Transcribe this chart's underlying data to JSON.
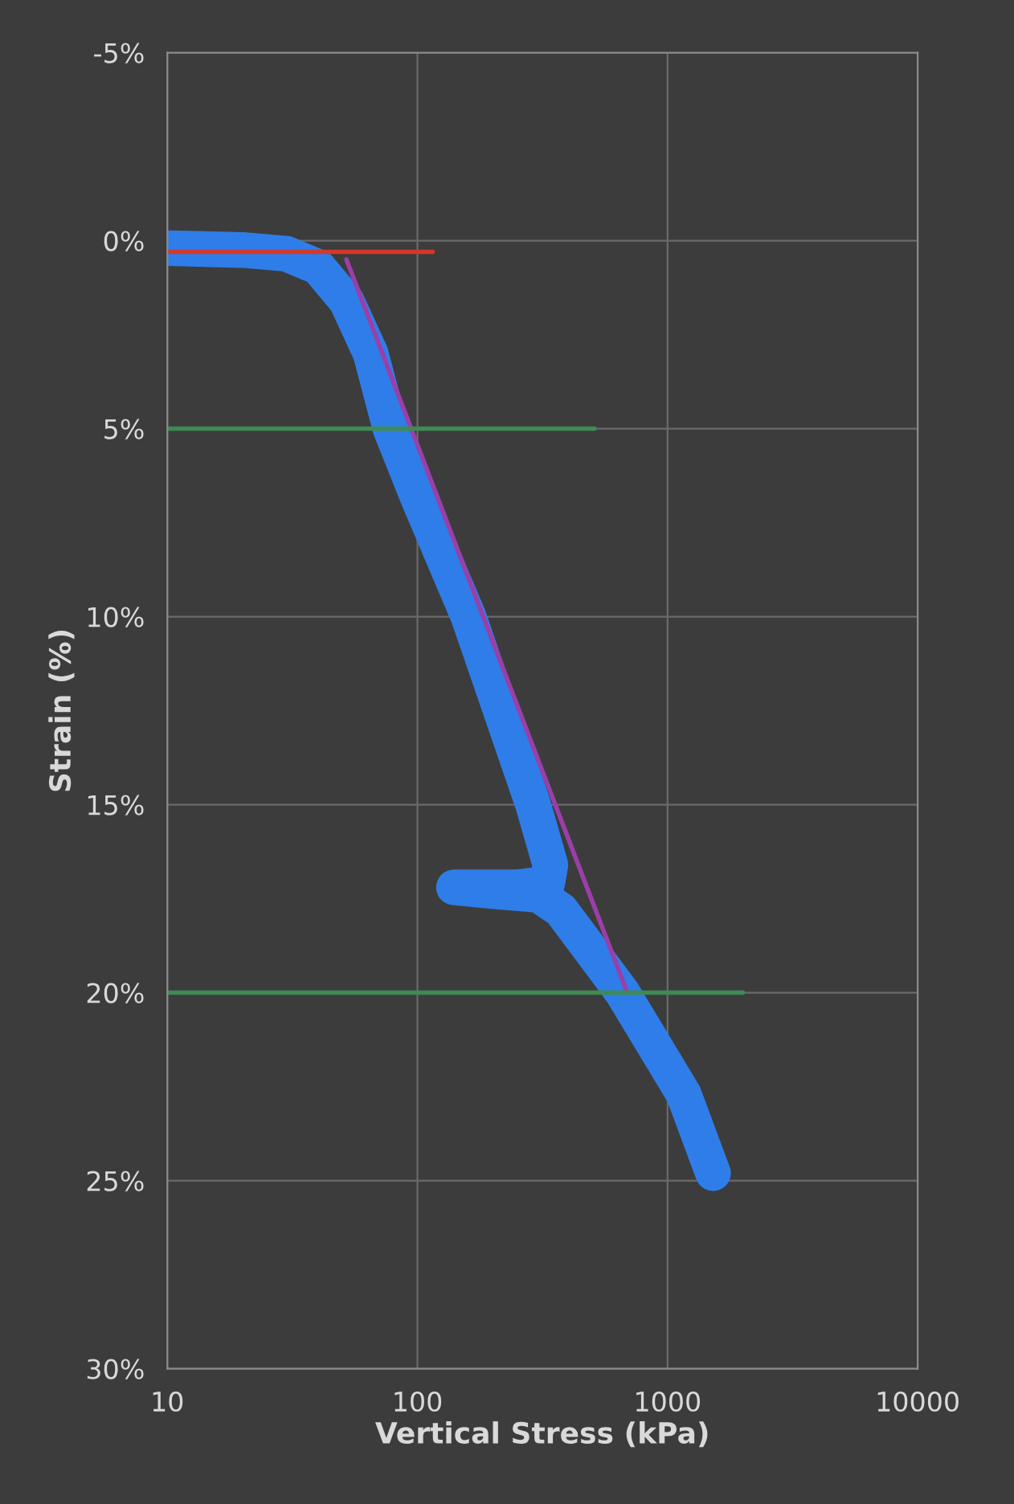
{
  "chart_data": {
    "type": "line",
    "xlabel": "Vertical Stress (kPa)",
    "ylabel": "Strain (%)",
    "log": "x",
    "xlim": [
      10,
      10000
    ],
    "xticks": [
      10,
      100,
      1000,
      10000
    ],
    "ylim": [
      30,
      -5
    ],
    "yticks": [
      {
        "value": -5,
        "label": "-5%"
      },
      {
        "value": 0,
        "label": "0%"
      },
      {
        "value": 5,
        "label": "5%"
      },
      {
        "value": 10,
        "label": "10%"
      },
      {
        "value": 15,
        "label": "15%"
      },
      {
        "value": 20,
        "label": "20%"
      },
      {
        "value": 25,
        "label": "25%"
      },
      {
        "value": 30,
        "label": "30%"
      }
    ],
    "grid": true,
    "marker": "none",
    "line_style": "solid",
    "series": [
      {
        "color": "#2f7de8",
        "x": [
          10,
          20,
          30,
          40,
          52,
          65,
          78,
          100,
          160,
          290,
          340,
          330,
          250,
          140,
          200,
          305,
          374,
          660,
          1160,
          1520
        ],
        "values": [
          0.2,
          0.25,
          0.35,
          0.7,
          1.6,
          3,
          5,
          6.8,
          10,
          15,
          16.6,
          17.1,
          17.2,
          17.2,
          17.3,
          17.4,
          17.8,
          20,
          22.7,
          24.8
        ]
      },
      {
        "color": "#d03a2c",
        "x": [
          10,
          115
        ],
        "values": [
          0.3,
          0.3
        ]
      },
      {
        "color": "#9a3fa8",
        "x": [
          52,
          690
        ],
        "values": [
          0.5,
          20
        ]
      },
      {
        "color": "#3f8a55",
        "x": [
          10,
          510
        ],
        "values": [
          5,
          5
        ]
      },
      {
        "color": "#3f8a55",
        "x": [
          10,
          2000
        ],
        "values": [
          20,
          20
        ]
      }
    ]
  }
}
